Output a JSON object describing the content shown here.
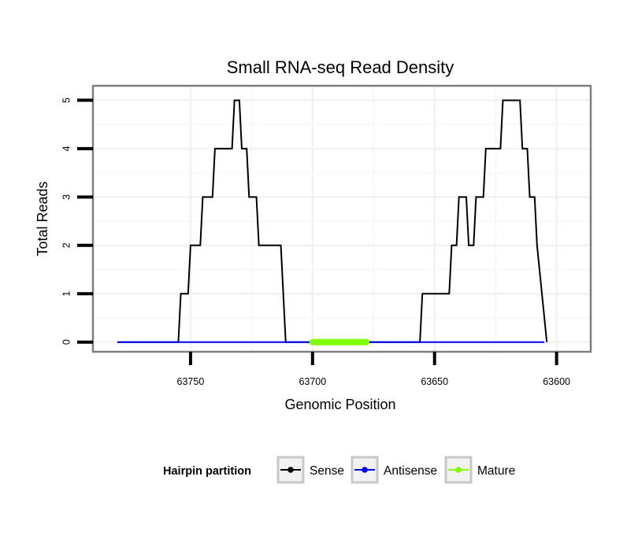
{
  "chart_data": {
    "type": "line",
    "title": "Small RNA-seq Read Density",
    "xlabel": "Genomic Position",
    "ylabel": "Total Reads",
    "xlim": [
      63790,
      63586
    ],
    "x_reversed": true,
    "ylim": [
      -0.2,
      5.3
    ],
    "x_ticks": [
      63750,
      63700,
      63650,
      63600
    ],
    "x_tick_labels": [
      "63750",
      "63700",
      "63650",
      "63600"
    ],
    "y_ticks": [
      0,
      1,
      2,
      3,
      4,
      5
    ],
    "y_tick_labels": [
      "0",
      "1",
      "2",
      "3",
      "4",
      "5"
    ],
    "grid": true,
    "legend": {
      "position": "bottom",
      "title": "Hairpin partition",
      "entries": [
        {
          "name": "Sense",
          "color": "#000000"
        },
        {
          "name": "Antisense",
          "color": "#0000ff"
        },
        {
          "name": "Mature",
          "color": "#7fff00"
        }
      ]
    },
    "series": [
      {
        "name": "Sense",
        "color": "#000000",
        "x": [
          63780,
          63755,
          63754,
          63751,
          63750,
          63746,
          63745,
          63741,
          63740,
          63733,
          63732,
          63730,
          63729,
          63727,
          63726,
          63723,
          63722,
          63713,
          63712,
          63711,
          63656,
          63655,
          63644,
          63643,
          63641,
          63640,
          63637,
          63636,
          63634,
          63633,
          63630,
          63629,
          63623,
          63622,
          63615,
          63614,
          63612,
          63611,
          63609,
          63608,
          63606,
          63604
        ],
        "y": [
          0,
          0,
          1,
          1,
          2,
          2,
          3,
          3,
          4,
          4,
          5,
          5,
          4,
          4,
          3,
          3,
          2,
          2,
          1,
          0,
          0,
          1,
          1,
          2,
          2,
          3,
          3,
          2,
          2,
          3,
          3,
          4,
          4,
          5,
          5,
          4,
          4,
          3,
          3,
          2,
          1,
          0
        ]
      },
      {
        "name": "Antisense",
        "color": "#0000ff",
        "x": [
          63780,
          63755,
          63713,
          63656,
          63605
        ],
        "y": [
          0,
          0,
          0,
          0,
          0
        ]
      },
      {
        "name": "Mature",
        "color": "#7fff00",
        "x": [
          63700,
          63678
        ],
        "y": [
          0,
          0
        ]
      }
    ]
  }
}
